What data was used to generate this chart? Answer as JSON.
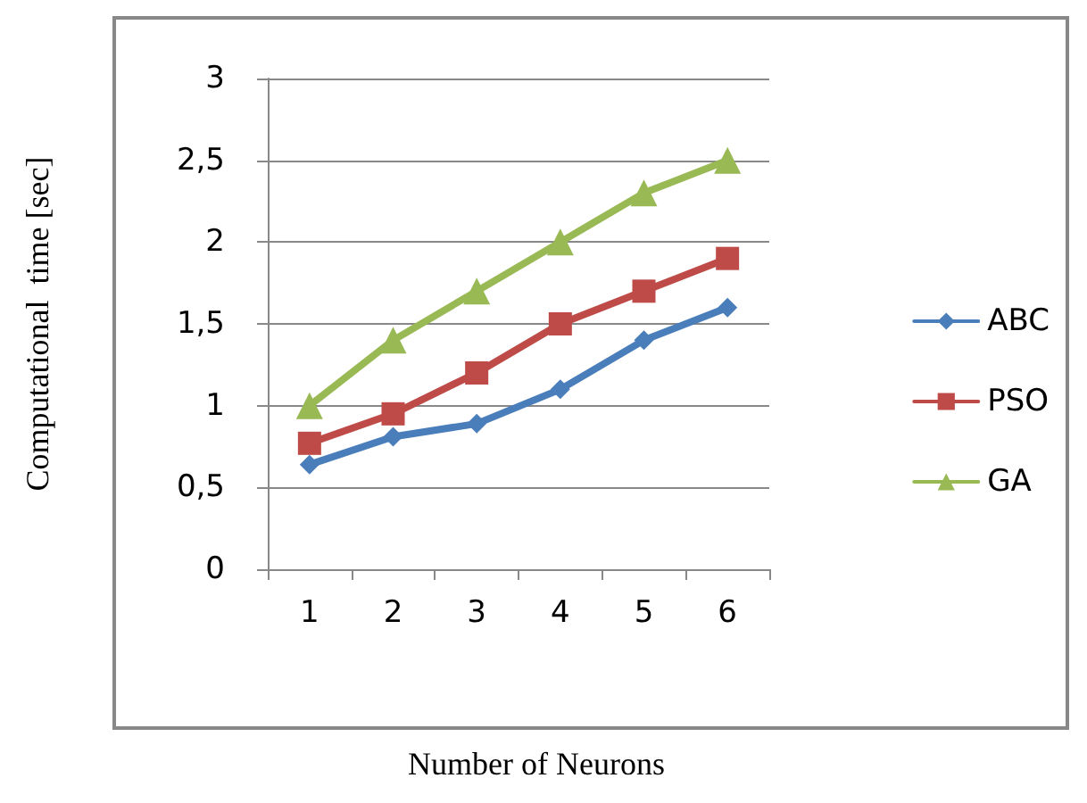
{
  "chart_data": {
    "type": "line",
    "xlabel": "Number of Neurons",
    "ylabel": "Computational  time [sec]",
    "categories": [
      "1",
      "2",
      "3",
      "4",
      "5",
      "6"
    ],
    "series": [
      {
        "name": "ABC",
        "color": "#4a7ebb",
        "marker": "diamond",
        "values": [
          0.64,
          0.81,
          0.89,
          1.1,
          1.4,
          1.6
        ]
      },
      {
        "name": "PSO",
        "color": "#be4b48",
        "marker": "square",
        "values": [
          0.77,
          0.95,
          1.2,
          1.5,
          1.7,
          1.9
        ]
      },
      {
        "name": "GA",
        "color": "#98b954",
        "marker": "triangle",
        "values": [
          1.0,
          1.4,
          1.7,
          2.0,
          2.3,
          2.5
        ]
      }
    ],
    "ylim": [
      0,
      3
    ],
    "yticks": [
      0,
      {
        "value": 0.5,
        "label": "0,5"
      },
      1,
      {
        "value": 1.5,
        "label": "1,5"
      },
      2,
      {
        "value": 2.5,
        "label": "2,5"
      },
      3
    ],
    "grid": "y",
    "legend": "right",
    "line_style": "solid"
  }
}
